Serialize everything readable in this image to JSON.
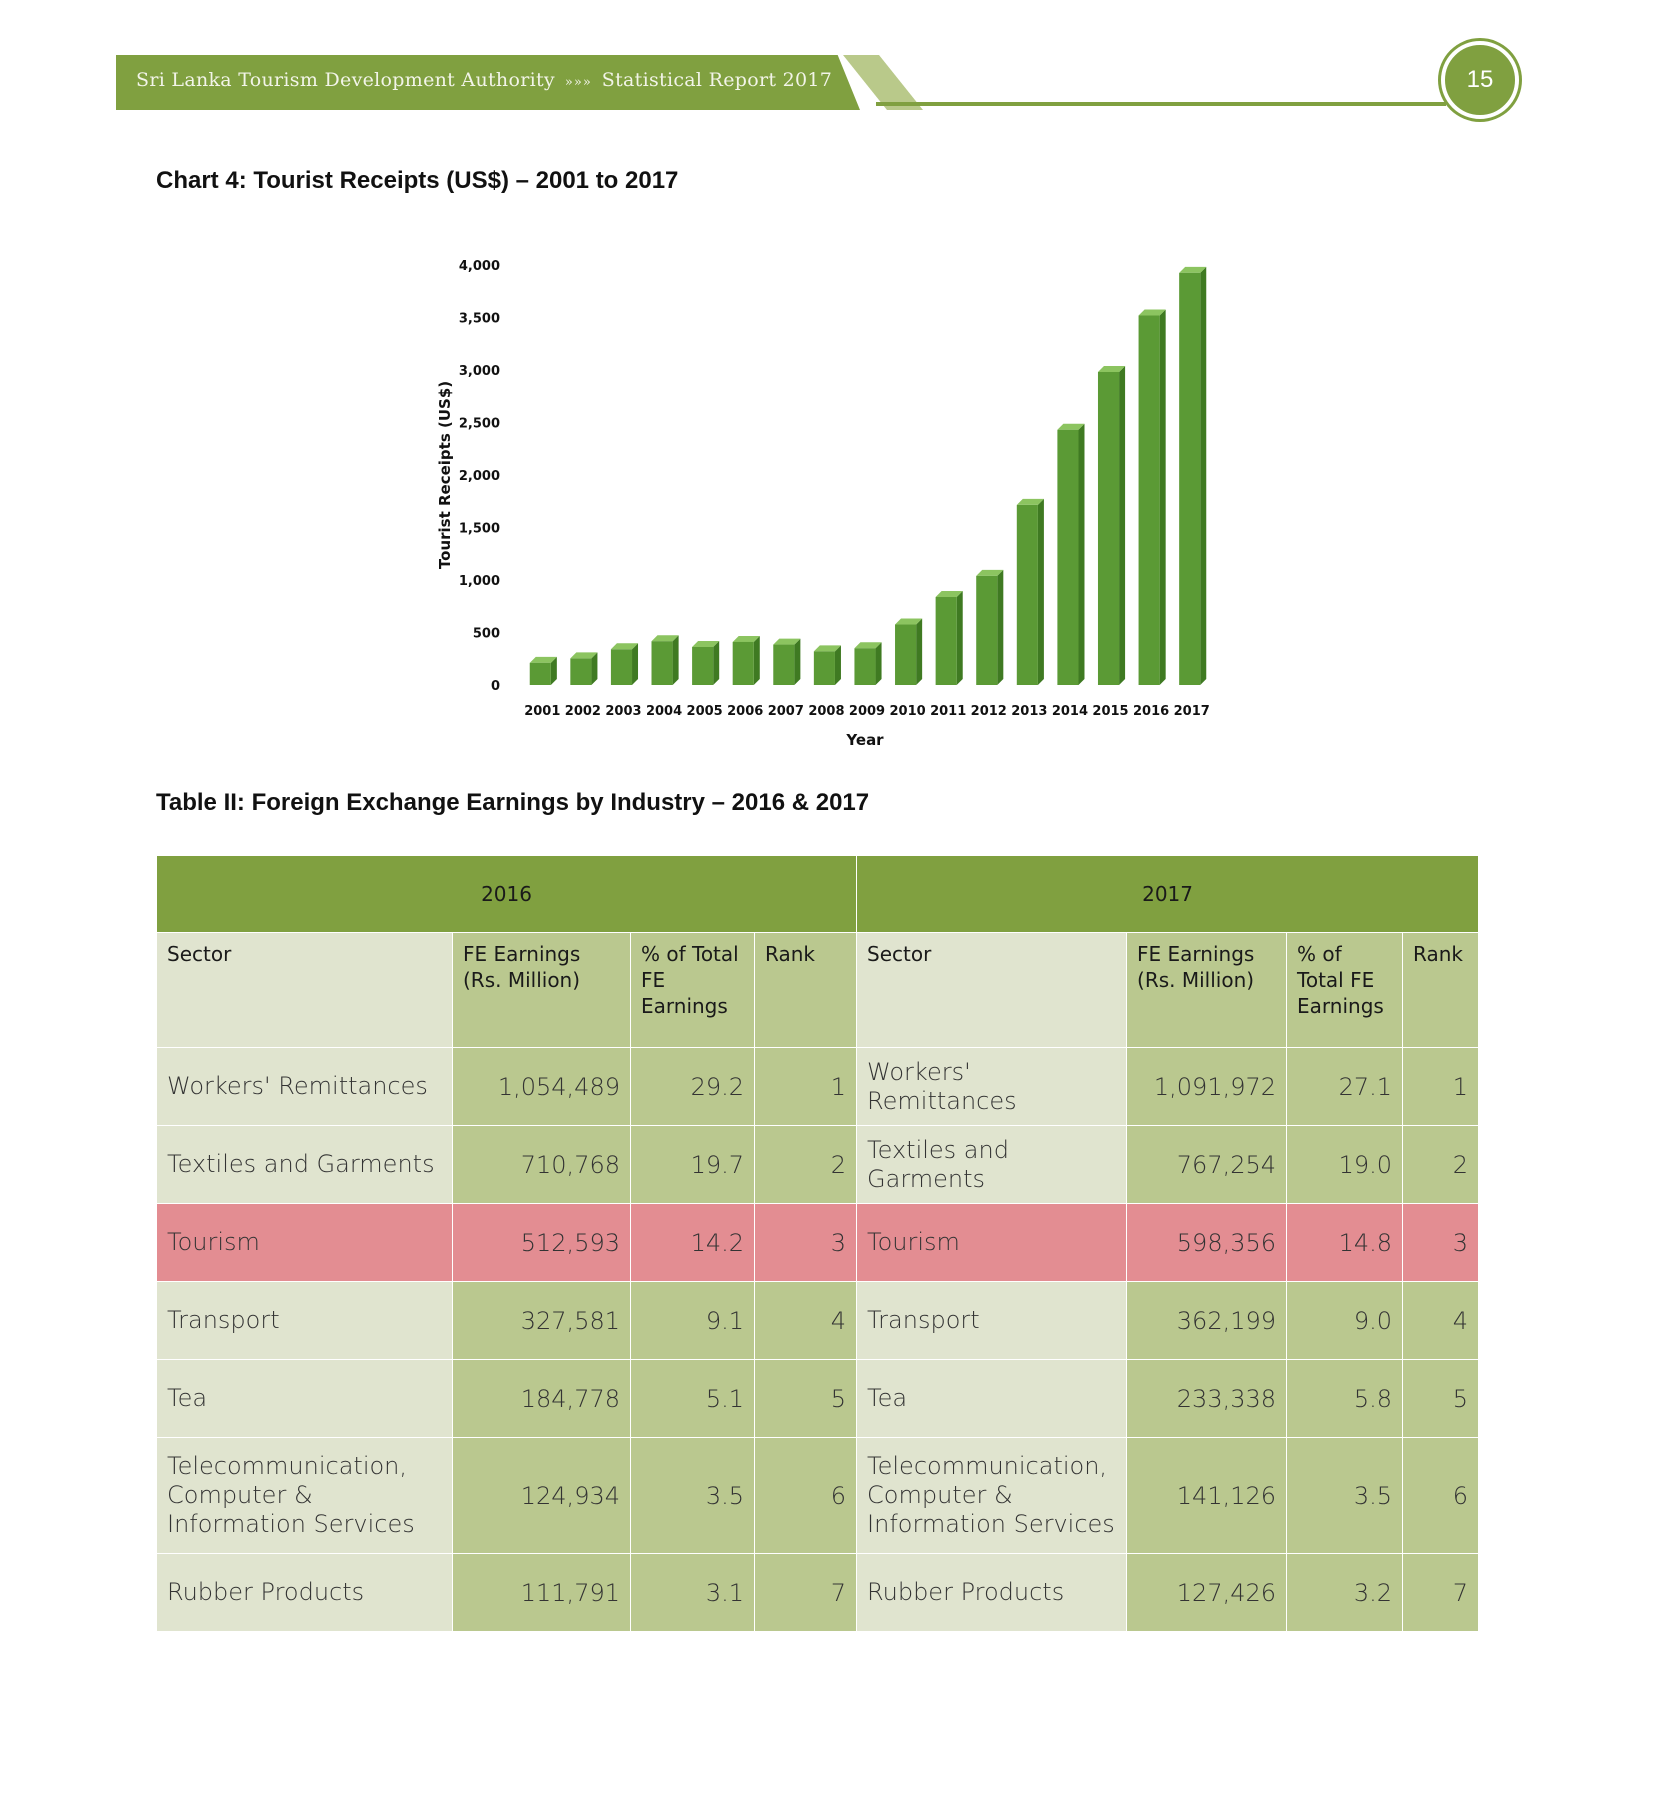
{
  "header": {
    "org": "Sri Lanka Tourism Development Authority",
    "separator": "»»»",
    "report": "Statistical Report 2017",
    "page_number": "15"
  },
  "chart_title": "Chart 4: Tourist Receipts (US$) – 2001 to 2017",
  "chart_data": {
    "type": "bar",
    "categories": [
      "2001",
      "2002",
      "2003",
      "2004",
      "2005",
      "2006",
      "2007",
      "2008",
      "2009",
      "2010",
      "2011",
      "2012",
      "2013",
      "2014",
      "2015",
      "2016",
      "2017"
    ],
    "values": [
      211,
      253,
      340,
      417,
      362,
      410,
      385,
      320,
      350,
      576,
      838,
      1039,
      1715,
      2431,
      2981,
      3519,
      3925
    ],
    "xlabel": "Year",
    "ylabel": "Tourist Receipts (US$)",
    "ylim": [
      0,
      4000
    ],
    "yticks": [
      "0",
      "500",
      "1,000",
      "1,500",
      "2,000",
      "2,500",
      "3,000",
      "3,500",
      "4,000"
    ],
    "grid": false,
    "bar_color": "#5b9a35"
  },
  "table_title": "Table II: Foreign Exchange Earnings by Industry – 2016 & 2017",
  "table": {
    "years": [
      "2016",
      "2017"
    ],
    "headers_2016": [
      "Sector",
      "FE Earnings (Rs. Million)",
      "% of Total FE Earnings",
      "Rank"
    ],
    "headers_2017": [
      "Sector",
      "FE Earnings (Rs. Million)",
      "% of Total FE Earnings",
      "Rank"
    ],
    "rows": [
      {
        "s16": "Workers' Remittances",
        "e16": "1,054,489",
        "p16": "29.2",
        "r16": "1",
        "s17": "Workers' Remittances",
        "e17": "1,091,972",
        "p17": "27.1",
        "r17": "1"
      },
      {
        "s16": "Textiles and Garments",
        "e16": "710,768",
        "p16": "19.7",
        "r16": "2",
        "s17": "Textiles and Garments",
        "e17": "767,254",
        "p17": "19.0",
        "r17": "2"
      },
      {
        "s16": "Tourism",
        "e16": "512,593",
        "p16": "14.2",
        "r16": "3",
        "s17": "Tourism",
        "e17": "598,356",
        "p17": "14.8",
        "r17": "3"
      },
      {
        "s16": "Transport",
        "e16": "327,581",
        "p16": "9.1",
        "r16": "4",
        "s17": "Transport",
        "e17": "362,199",
        "p17": "9.0",
        "r17": "4"
      },
      {
        "s16": "Tea",
        "e16": "184,778",
        "p16": "5.1",
        "r16": "5",
        "s17": "Tea",
        "e17": "233,338",
        "p17": "5.8",
        "r17": "5"
      },
      {
        "s16": "Telecommunication, Computer & Information Services",
        "e16": "124,934",
        "p16": "3.5",
        "r16": "6",
        "s17": "Telecommunication, Computer & Information Services",
        "e17": "141,126",
        "p17": "3.5",
        "r17": "6"
      },
      {
        "s16": "Rubber Products",
        "e16": "111,791",
        "p16": "3.1",
        "r16": "7",
        "s17": "Rubber Products",
        "e17": "127,426",
        "p17": "3.2",
        "r17": "7"
      }
    ]
  }
}
